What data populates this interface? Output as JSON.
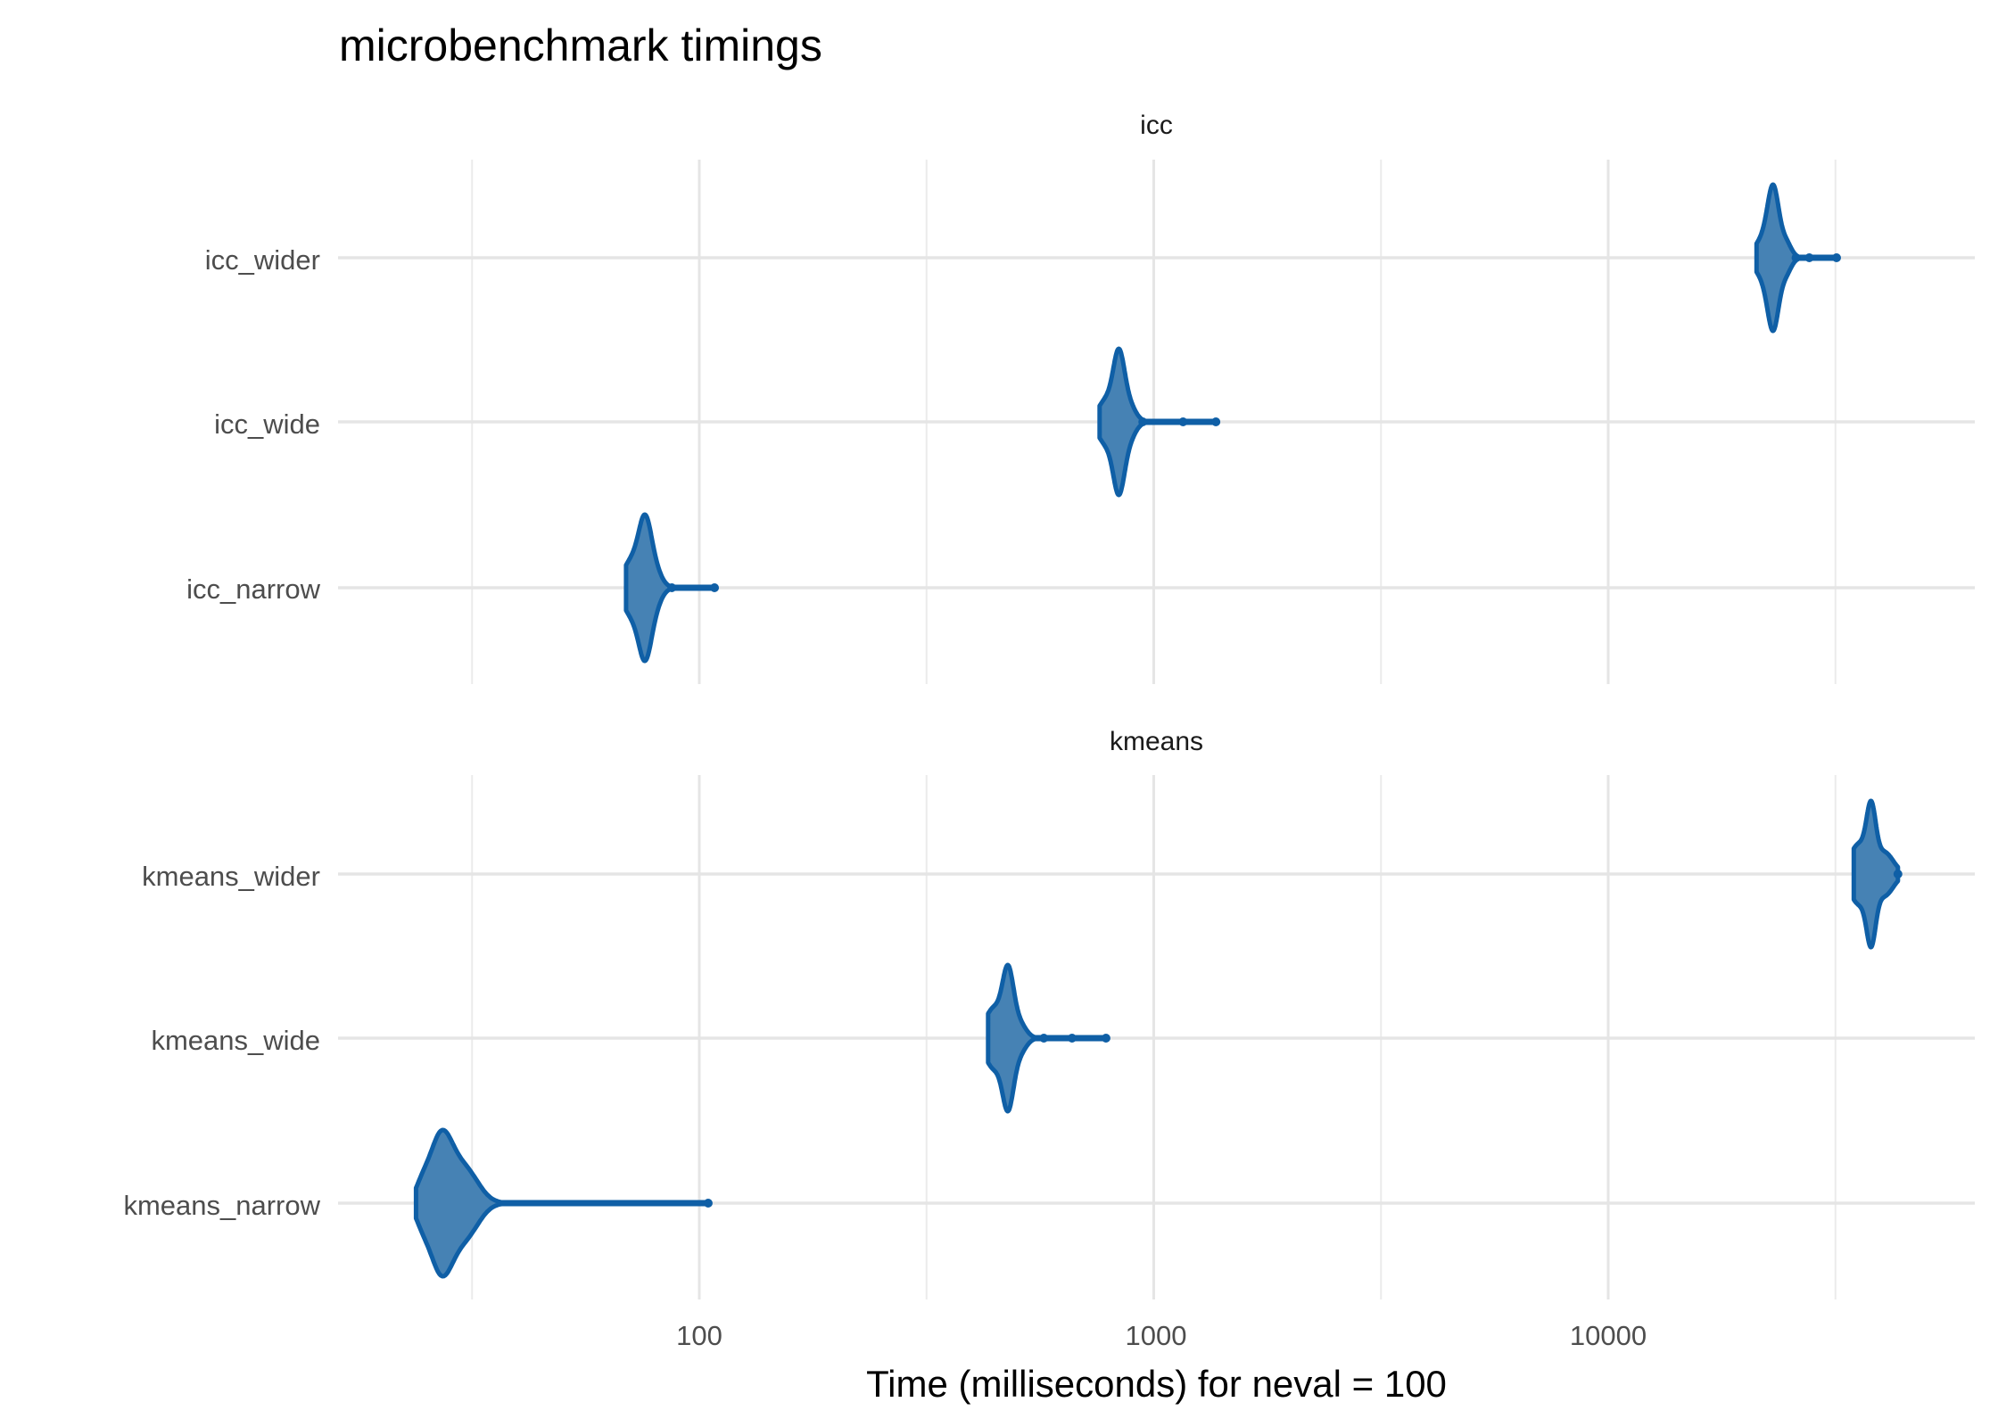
{
  "chart_data": {
    "type": "violin",
    "title": "microbenchmark timings",
    "xlabel": "Time (milliseconds) for neval = 100",
    "ylabel": "",
    "x_scale": "log10",
    "xlim": [
      16,
      64000
    ],
    "x_ticks": [
      100,
      1000,
      10000
    ],
    "x_tick_labels": [
      "100",
      "1000",
      "10000"
    ],
    "grid": true,
    "fill_color": "#4682b4",
    "line_color": "#0f5fa6",
    "panels": [
      {
        "strip": "icc",
        "categories": [
          "icc_wider",
          "icc_wide",
          "icc_narrow"
        ],
        "series": [
          {
            "category": "icc_wider",
            "min": 21200,
            "mode": 23100,
            "max": 31800,
            "outliers": [
              25900,
              27700,
              31800
            ],
            "density": [
              [
                23100,
                0.012,
                1
              ],
              [
                22100,
                0.02,
                0.35
              ],
              [
                24600,
                0.012,
                0.25
              ]
            ]
          },
          {
            "category": "icc_wide",
            "min": 760,
            "mode": 838,
            "max": 1370,
            "outliers": [
              946,
              1160,
              1370
            ],
            "density": [
              [
                838,
                0.012,
                1
              ],
              [
                790,
                0.02,
                0.4
              ],
              [
                880,
                0.015,
                0.3
              ]
            ]
          },
          {
            "category": "icc_narrow",
            "min": 69,
            "mode": 76,
            "max": 108,
            "outliers": [
              87,
              108
            ],
            "density": [
              [
                76,
                0.014,
                1
              ],
              [
                71,
                0.02,
                0.45
              ],
              [
                80,
                0.015,
                0.25
              ]
            ]
          }
        ]
      },
      {
        "strip": "kmeans",
        "categories": [
          "kmeans_wider",
          "kmeans_wide",
          "kmeans_narrow"
        ],
        "series": [
          {
            "category": "kmeans_wider",
            "min": 34700,
            "mode": 37900,
            "max": 43400,
            "outliers": [
              43400
            ],
            "density": [
              [
                37900,
                0.01,
                1
              ],
              [
                35600,
                0.02,
                0.55
              ],
              [
                40500,
                0.02,
                0.4
              ]
            ]
          },
          {
            "category": "kmeans_wide",
            "min": 432,
            "mode": 478,
            "max": 785,
            "outliers": [
              573,
              661,
              785
            ],
            "density": [
              [
                478,
                0.012,
                1
              ],
              [
                445,
                0.02,
                0.5
              ],
              [
                505,
                0.015,
                0.25
              ]
            ]
          },
          {
            "category": "kmeans_narrow",
            "min": 23.8,
            "mode": 27,
            "max": 104.6,
            "outliers": [
              104.6
            ],
            "density": [
              [
                27,
                0.025,
                1
              ],
              [
                30.5,
                0.03,
                0.5
              ],
              [
                24.5,
                0.015,
                0.2
              ]
            ]
          }
        ]
      }
    ]
  }
}
